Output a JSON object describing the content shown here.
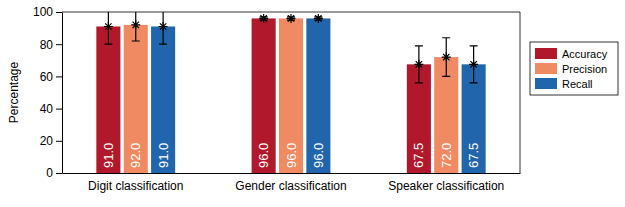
{
  "chart_data": {
    "type": "bar",
    "categories": [
      "Digit classification",
      "Gender classification",
      "Speaker classification"
    ],
    "y_label": "Percentage",
    "ylim": [
      0,
      100
    ],
    "yticks": [
      0,
      20,
      40,
      60,
      80,
      100
    ],
    "grid": false,
    "legend": "right",
    "data_labels": true,
    "marker": "asterisk",
    "series": [
      {
        "name": "Accuracy",
        "color": "#b2182b",
        "values": [
          91.0,
          96.0,
          67.5
        ],
        "value_labels": [
          "91.0",
          "96.0",
          "67.5"
        ],
        "errors": [
          11,
          1,
          11.5
        ]
      },
      {
        "name": "Precision",
        "color": "#ef8a62",
        "values": [
          92.0,
          96.0,
          72.0
        ],
        "value_labels": [
          "92.0",
          "96.0",
          "72.0"
        ],
        "errors": [
          10,
          1,
          12
        ]
      },
      {
        "name": "Recall",
        "color": "#2166ac",
        "values": [
          91.0,
          96.0,
          67.5
        ],
        "value_labels": [
          "91.0",
          "96.0",
          "67.5"
        ],
        "errors": [
          11,
          1,
          11.5
        ]
      }
    ]
  }
}
